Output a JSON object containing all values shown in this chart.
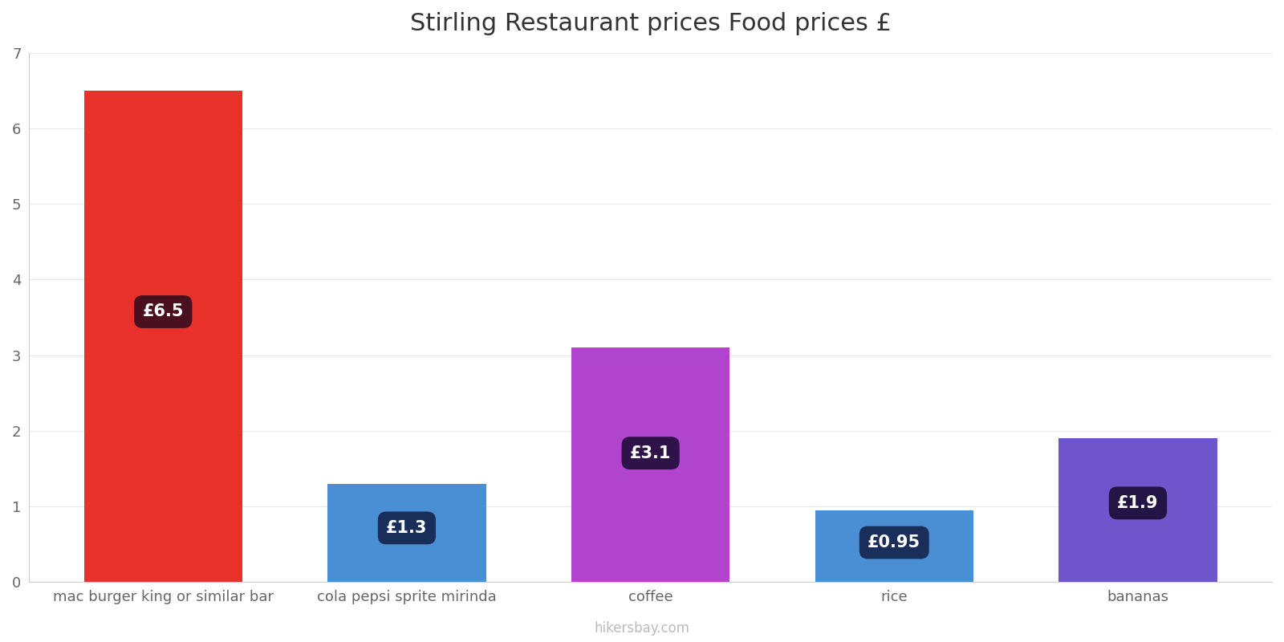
{
  "title": "Stirling Restaurant prices Food prices £",
  "categories": [
    "mac burger king or similar bar",
    "cola pepsi sprite mirinda",
    "coffee",
    "rice",
    "bananas"
  ],
  "values": [
    6.5,
    1.3,
    3.1,
    0.95,
    1.9
  ],
  "bar_colors": [
    "#e8312a",
    "#4a8fd4",
    "#b044cc",
    "#4a8fd4",
    "#6e55cc"
  ],
  "label_texts": [
    "£6.5",
    "£1.3",
    "£3.1",
    "£0.95",
    "£1.9"
  ],
  "label_box_colors": [
    "#4a1020",
    "#1a2e5a",
    "#2e1248",
    "#1a2e5a",
    "#221445"
  ],
  "ylim": [
    0,
    7
  ],
  "yticks": [
    0,
    1,
    2,
    3,
    4,
    5,
    6,
    7
  ],
  "title_fontsize": 22,
  "tick_fontsize": 13,
  "label_fontsize": 15,
  "watermark": "hikersbay.com",
  "background_color": "#ffffff",
  "bar_width": 0.65
}
